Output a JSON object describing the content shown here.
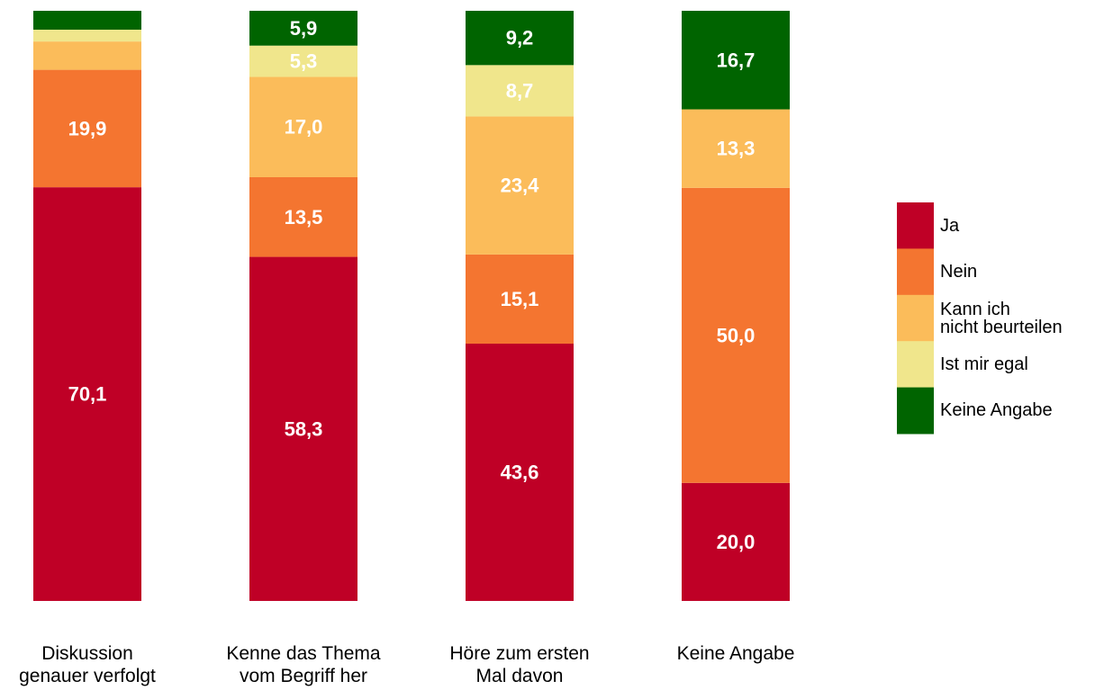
{
  "chart_data": {
    "type": "stacked_bar",
    "categories": [
      "Diskussion\ngenauer verfolgt",
      "Kenne das Thema\nvom Begriff her",
      "Höre zum ersten\nMal davon",
      "Keine Angabe"
    ],
    "ylim": [
      0,
      100
    ],
    "series": [
      {
        "name": "Ja",
        "color": "#bf0026",
        "values": [
          70.1,
          58.3,
          43.6,
          20.0
        ],
        "value_labels": [
          "70,1",
          "58,3",
          "43,6",
          "20,0"
        ]
      },
      {
        "name": "Nein",
        "color": "#f47530",
        "values": [
          19.9,
          13.5,
          15.1,
          50.0
        ],
        "value_labels": [
          "19,9",
          "13,5",
          "15,1",
          "50,0"
        ]
      },
      {
        "name": "Kann ich\nnicht beurteilen",
        "color": "#fbbc5a",
        "values": [
          4.8,
          17.0,
          23.4,
          13.3
        ],
        "value_labels": [
          null,
          "17,0",
          "23,4",
          "13,3"
        ]
      },
      {
        "name": "Ist mir egal",
        "color": "#f0e68c",
        "values": [
          2.0,
          5.3,
          8.7,
          0
        ],
        "value_labels": [
          null,
          "5,3",
          "8,7",
          null
        ]
      },
      {
        "name": "Keine Angabe",
        "color": "#006400",
        "values": [
          3.2,
          5.9,
          9.2,
          16.7
        ],
        "value_labels": [
          null,
          "5,9",
          "9,2",
          "16,7"
        ]
      }
    ],
    "legend": "right"
  }
}
